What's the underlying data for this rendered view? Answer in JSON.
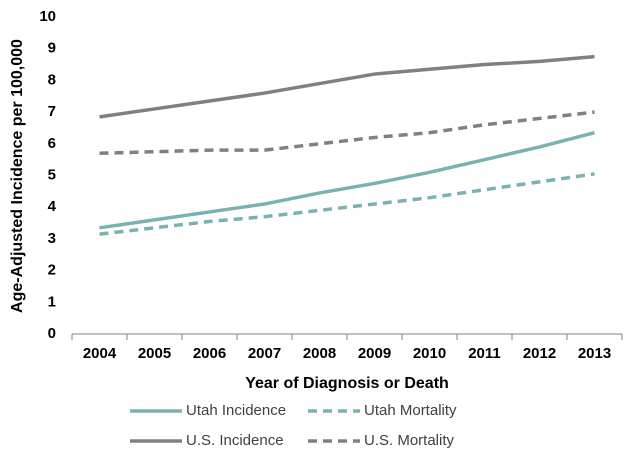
{
  "chart_data": {
    "type": "line",
    "x_label": "Year of Diagnosis or Death",
    "y_label": "Age-Adjusted Incidence per 100,000",
    "categories": [
      "2004",
      "2005",
      "2006",
      "2007",
      "2008",
      "2009",
      "2010",
      "2011",
      "2012",
      "2013"
    ],
    "series": [
      {
        "name": "Utah Incidence",
        "color": "#7ab2b2",
        "dashed": false,
        "values": [
          3.35,
          3.6,
          3.85,
          4.1,
          4.45,
          4.75,
          5.1,
          5.5,
          5.9,
          6.35
        ]
      },
      {
        "name": "Utah Mortality",
        "color": "#7ab2b2",
        "dashed": true,
        "values": [
          3.15,
          3.35,
          3.55,
          3.7,
          3.9,
          4.1,
          4.3,
          4.55,
          4.8,
          5.05
        ]
      },
      {
        "name": "U.S. Incidence",
        "color": "#808080",
        "dashed": false,
        "values": [
          6.85,
          7.1,
          7.35,
          7.6,
          7.9,
          8.2,
          8.35,
          8.5,
          8.6,
          8.75
        ]
      },
      {
        "name": "U.S. Mortality",
        "color": "#808080",
        "dashed": true,
        "values": [
          5.7,
          5.75,
          5.8,
          5.8,
          6.0,
          6.2,
          6.35,
          6.6,
          6.8,
          7.0
        ]
      }
    ],
    "ylim": [
      0,
      10
    ],
    "yticks": [
      0,
      1,
      2,
      3,
      4,
      5,
      6,
      7,
      8,
      9,
      10
    ],
    "grid": false
  }
}
